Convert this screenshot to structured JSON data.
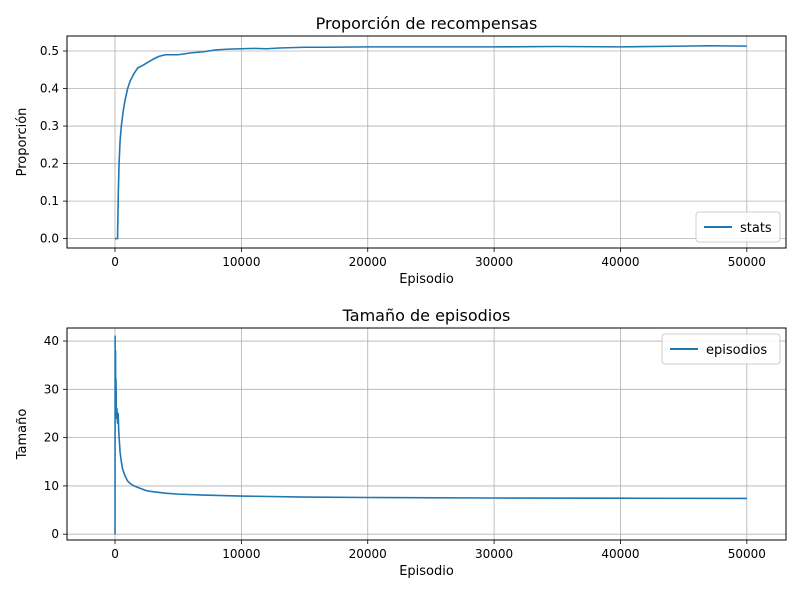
{
  "chart_data": [
    {
      "type": "line",
      "title": "Proporción de recompensas",
      "xlabel": "Episodio",
      "ylabel": "Proporción",
      "xlim": [
        -3800,
        53100
      ],
      "ylim": [
        -0.025,
        0.54
      ],
      "grid": true,
      "legend_position": "lower-right",
      "x_ticks": [
        0,
        10000,
        20000,
        30000,
        40000,
        50000
      ],
      "y_ticks": [
        0.0,
        0.1,
        0.2,
        0.3,
        0.4,
        0.5
      ],
      "x_tick_labels": [
        "0",
        "10000",
        "20000",
        "30000",
        "40000",
        "50000"
      ],
      "y_tick_labels": [
        "0.0",
        "0.1",
        "0.2",
        "0.3",
        "0.4",
        "0.5"
      ],
      "series": [
        {
          "name": "stats",
          "color": "#1f77b4",
          "x": [
            0,
            150,
            200,
            260,
            320,
            400,
            500,
            650,
            800,
            1000,
            1200,
            1500,
            1800,
            2100,
            2500,
            3000,
            3500,
            4000,
            5000,
            6000,
            7000,
            8000,
            9000,
            10000,
            11000,
            12000,
            13000,
            15000,
            17000,
            20000,
            25000,
            30000,
            35000,
            40000,
            45000,
            47000,
            50000
          ],
          "y": [
            0.0,
            0.0,
            0.0,
            0.12,
            0.2,
            0.26,
            0.3,
            0.34,
            0.37,
            0.4,
            0.42,
            0.44,
            0.455,
            0.46,
            0.468,
            0.478,
            0.486,
            0.49,
            0.49,
            0.495,
            0.498,
            0.503,
            0.505,
            0.506,
            0.507,
            0.506,
            0.508,
            0.51,
            0.51,
            0.511,
            0.511,
            0.511,
            0.512,
            0.511,
            0.513,
            0.514,
            0.513
          ]
        }
      ]
    },
    {
      "type": "line",
      "title": "Tamaño de episodios",
      "xlabel": "Episodio",
      "ylabel": "Tamaño",
      "xlim": [
        -3800,
        53100
      ],
      "ylim": [
        -1.2,
        42.7
      ],
      "grid": true,
      "legend_position": "upper-right",
      "x_ticks": [
        0,
        10000,
        20000,
        30000,
        40000,
        50000
      ],
      "y_ticks": [
        0,
        10,
        20,
        30,
        40
      ],
      "x_tick_labels": [
        "0",
        "10000",
        "20000",
        "30000",
        "40000",
        "50000"
      ],
      "y_tick_labels": [
        "0",
        "10",
        "20",
        "30",
        "40"
      ],
      "series": [
        {
          "name": "episodios",
          "color": "#1f77b4",
          "x": [
            0,
            10,
            20,
            40,
            60,
            80,
            100,
            150,
            200,
            250,
            300,
            350,
            400,
            500,
            600,
            800,
            1000,
            1200,
            1500,
            2000,
            2500,
            3000,
            4000,
            5000,
            7000,
            10000,
            15000,
            20000,
            30000,
            40000,
            50000
          ],
          "y": [
            0,
            41,
            28,
            38,
            24,
            32,
            26,
            26,
            23,
            25,
            21,
            19,
            17,
            15,
            13.5,
            12,
            11,
            10.5,
            10,
            9.5,
            9,
            8.8,
            8.5,
            8.3,
            8.1,
            7.9,
            7.7,
            7.6,
            7.5,
            7.45,
            7.4
          ]
        }
      ]
    }
  ]
}
